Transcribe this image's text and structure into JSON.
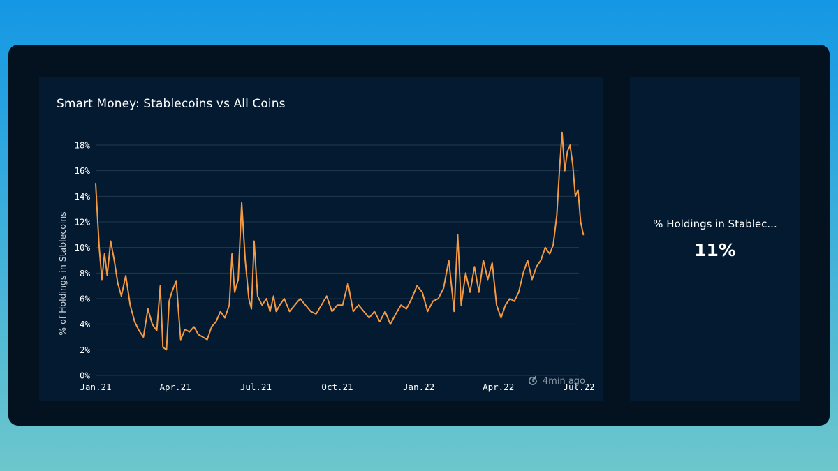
{
  "chart_panel": {
    "title": "Smart Money: Stablecoins vs All Coins",
    "updated_text": "4min ago",
    "updated_icon": "refresh-clock-icon"
  },
  "stat_panel": {
    "label": "% Holdings in Stablec...",
    "value": "11%"
  },
  "colors": {
    "line": "#f49a44",
    "background": "#04111e",
    "panel": "#031a30"
  },
  "chart_data": {
    "type": "line",
    "title": "Smart Money: Stablecoins vs All Coins",
    "xlabel": "",
    "ylabel": "% of Holdings in Stablecoins",
    "ylim": [
      0,
      18
    ],
    "yticks": [
      0,
      2,
      4,
      6,
      8,
      10,
      12,
      14,
      16,
      18
    ],
    "ytick_labels": [
      "0%",
      "2%",
      "4%",
      "6%",
      "8%",
      "10%",
      "12%",
      "14%",
      "16%",
      "18%"
    ],
    "xticks": [
      "2021-01-01",
      "2021-04-01",
      "2021-07-01",
      "2021-10-01",
      "2022-01-01",
      "2022-04-01",
      "2022-07-01"
    ],
    "xtick_labels": [
      "Jan.21",
      "Apr.21",
      "Jul.21",
      "Oct.21",
      "Jan.22",
      "Apr.22",
      "Jul.22"
    ],
    "grid": true,
    "legend": "none",
    "series": [
      {
        "color": "#f49a44",
        "x": [
          "2021-01-01",
          "2021-01-03",
          "2021-01-05",
          "2021-01-08",
          "2021-01-11",
          "2021-01-14",
          "2021-01-18",
          "2021-01-22",
          "2021-01-26",
          "2021-01-30",
          "2021-02-04",
          "2021-02-09",
          "2021-02-14",
          "2021-02-19",
          "2021-02-24",
          "2021-03-01",
          "2021-03-06",
          "2021-03-11",
          "2021-03-15",
          "2021-03-18",
          "2021-03-22",
          "2021-03-25",
          "2021-03-28",
          "2021-04-02",
          "2021-04-07",
          "2021-04-12",
          "2021-04-17",
          "2021-04-22",
          "2021-04-27",
          "2021-05-02",
          "2021-05-07",
          "2021-05-12",
          "2021-05-17",
          "2021-05-22",
          "2021-05-27",
          "2021-06-01",
          "2021-06-04",
          "2021-06-07",
          "2021-06-11",
          "2021-06-15",
          "2021-06-19",
          "2021-06-23",
          "2021-06-26",
          "2021-06-29",
          "2021-07-03",
          "2021-07-08",
          "2021-07-13",
          "2021-07-17",
          "2021-07-21",
          "2021-07-24",
          "2021-07-28",
          "2021-08-02",
          "2021-08-08",
          "2021-08-14",
          "2021-08-20",
          "2021-08-26",
          "2021-09-01",
          "2021-09-07",
          "2021-09-13",
          "2021-09-19",
          "2021-09-25",
          "2021-10-01",
          "2021-10-07",
          "2021-10-13",
          "2021-10-19",
          "2021-10-25",
          "2021-10-31",
          "2021-11-06",
          "2021-11-12",
          "2021-11-18",
          "2021-11-24",
          "2021-11-30",
          "2021-12-06",
          "2021-12-12",
          "2021-12-18",
          "2021-12-24",
          "2021-12-30",
          "2022-01-05",
          "2022-01-11",
          "2022-01-17",
          "2022-01-23",
          "2022-01-29",
          "2022-02-04",
          "2022-02-10",
          "2022-02-14",
          "2022-02-18",
          "2022-02-23",
          "2022-02-28",
          "2022-03-05",
          "2022-03-10",
          "2022-03-15",
          "2022-03-20",
          "2022-03-25",
          "2022-03-30",
          "2022-04-04",
          "2022-04-09",
          "2022-04-14",
          "2022-04-19",
          "2022-04-24",
          "2022-04-29",
          "2022-05-04",
          "2022-05-09",
          "2022-05-14",
          "2022-05-19",
          "2022-05-24",
          "2022-05-29",
          "2022-06-02",
          "2022-06-06",
          "2022-06-09",
          "2022-06-12",
          "2022-06-15",
          "2022-06-18",
          "2022-06-21",
          "2022-06-24",
          "2022-06-27",
          "2022-06-30",
          "2022-07-03",
          "2022-07-06"
        ],
        "y": [
          15.0,
          12.5,
          10.0,
          7.5,
          9.5,
          7.8,
          10.5,
          9.0,
          7.2,
          6.2,
          7.8,
          5.5,
          4.2,
          3.5,
          3.0,
          5.2,
          4.0,
          3.5,
          7.0,
          2.2,
          2.0,
          5.8,
          6.5,
          7.4,
          2.8,
          3.6,
          3.4,
          3.8,
          3.2,
          3.0,
          2.8,
          3.8,
          4.2,
          5.0,
          4.5,
          5.5,
          9.5,
          6.5,
          7.5,
          13.5,
          9.0,
          6.0,
          5.2,
          10.5,
          6.2,
          5.5,
          6.0,
          5.0,
          6.2,
          5.0,
          5.5,
          6.0,
          5.0,
          5.5,
          6.0,
          5.5,
          5.0,
          4.8,
          5.5,
          6.2,
          5.0,
          5.5,
          5.5,
          7.2,
          5.0,
          5.5,
          5.0,
          4.5,
          5.0,
          4.2,
          5.0,
          4.0,
          4.8,
          5.5,
          5.2,
          6.0,
          7.0,
          6.5,
          5.0,
          5.8,
          6.0,
          6.8,
          9.0,
          5.0,
          11.0,
          5.5,
          8.0,
          6.5,
          8.5,
          6.5,
          9.0,
          7.5,
          8.8,
          5.5,
          4.5,
          5.5,
          6.0,
          5.8,
          6.5,
          8.0,
          9.0,
          7.5,
          8.5,
          9.0,
          10.0,
          9.5,
          10.2,
          12.5,
          16.0,
          19.0,
          16.0,
          17.5,
          18.0,
          16.5,
          14.0,
          14.5,
          12.0,
          11.0
        ]
      }
    ]
  }
}
